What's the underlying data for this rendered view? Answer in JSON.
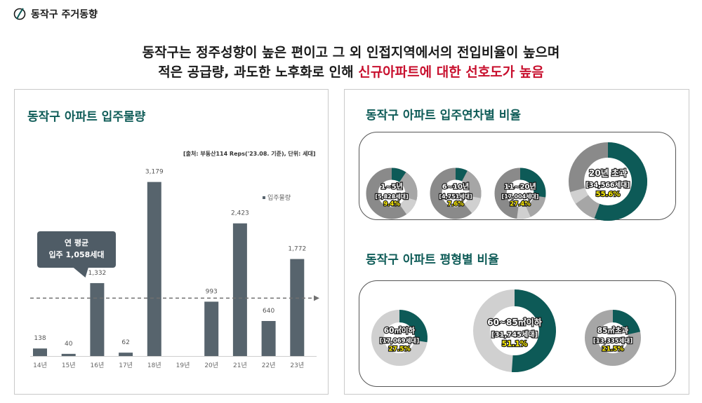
{
  "header": {
    "brand": "동작구 주거동향",
    "headline_line1": "동작구는 정주성향이 높은 편이고 그 외 인접지역에서의 전입비율이 높으며",
    "headline_line2_plain": "적은 공급량, 과도한 노후화로 인해 ",
    "headline_line2_highlight": "신규아파트에 대한 선호도가 높음"
  },
  "colors": {
    "teal": "#0d5a57",
    "bar": "#57646d",
    "red": "#c8102e",
    "yellow": "#ffee00",
    "grey_dark": "#8a8a8a",
    "grey_mid": "#a6a6a6",
    "grey_light": "#d0d0d0"
  },
  "left_panel": {
    "title": "동작구 아파트 입주물량",
    "source": "[출처: 부동산114 Reps('23.08. 기준), 단위: 세대]",
    "avg_line1": "연 평균",
    "avg_line2": "입주 1,058세대"
  },
  "right_panel": {
    "title1": "동작구 아파트 입주연차별 비율",
    "title2": "동작구 아파트 평형별 비율"
  },
  "chart_data": [
    {
      "type": "bar",
      "title": "동작구 아파트 입주물량",
      "categories": [
        "14년",
        "15년",
        "16년",
        "17년",
        "18년",
        "19년",
        "20년",
        "21년",
        "22년",
        "23년"
      ],
      "series": [
        {
          "name": "입주물량",
          "values": [
            138,
            40,
            1332,
            62,
            3179,
            0,
            993,
            2423,
            640,
            1772
          ],
          "labels": [
            "138",
            "40",
            "1,332",
            "62",
            "3,179",
            "",
            "993",
            "2,423",
            "640",
            "1,772"
          ]
        }
      ],
      "reference_line": {
        "value": 1058
      },
      "ylim": [
        0,
        3200
      ],
      "grid": false,
      "legend": "right"
    },
    {
      "type": "pie",
      "title": "동작구 아파트 입주연차별 비율",
      "slices": [
        {
          "line1": "1~5년",
          "line2": "[5,828세대]",
          "line3": "9.4%",
          "value": 9.4
        },
        {
          "line1": "6~10년",
          "line2": "[4,751세대]",
          "line3": "7.6%",
          "value": 7.6
        },
        {
          "line1": "11~20년",
          "line2": "[17,004세대]",
          "line3": "27.4%",
          "value": 27.4
        },
        {
          "line1": "20년 초과",
          "line2": "[34,566세대]",
          "line3": "55.6%",
          "value": 55.6
        }
      ]
    },
    {
      "type": "pie",
      "title": "동작구 아파트 평형별 비율",
      "slices": [
        {
          "line1": "60㎡이하",
          "line2": "[17,069세대]",
          "line3": "27.5%",
          "value": 27.5
        },
        {
          "line1": "60~85㎡이하",
          "line2": "[31,745세대]",
          "line3": "51.1%",
          "value": 51.1
        },
        {
          "line1": "85㎡초과",
          "line2": "[13,335세대]",
          "line3": "21.5%",
          "value": 21.5
        }
      ]
    }
  ]
}
